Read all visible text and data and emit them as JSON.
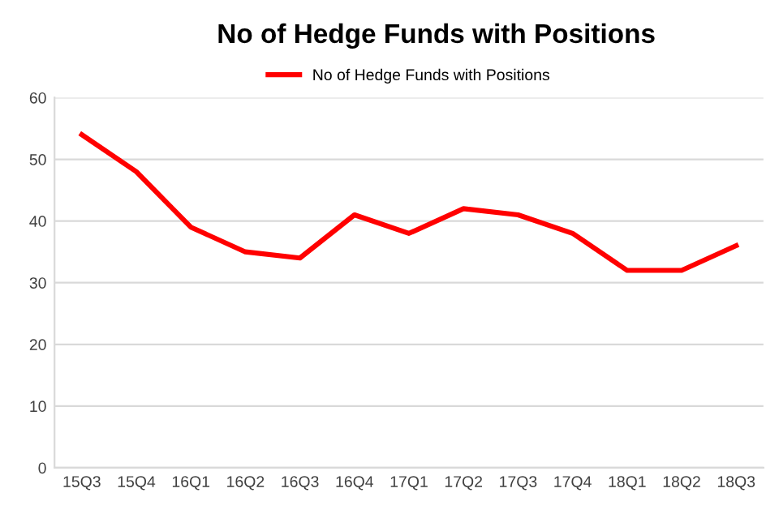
{
  "chart_data": {
    "type": "line",
    "title": "No of Hedge Funds with Positions",
    "categories": [
      "15Q3",
      "15Q4",
      "16Q1",
      "16Q2",
      "16Q3",
      "16Q4",
      "17Q1",
      "17Q2",
      "17Q3",
      "17Q4",
      "18Q1",
      "18Q2",
      "18Q3"
    ],
    "series": [
      {
        "name": "No of Hedge Funds with Positions",
        "color": "#ff0000",
        "values": [
          54,
          48,
          39,
          35,
          34,
          41,
          38,
          42,
          41,
          38,
          32,
          32,
          36
        ]
      }
    ],
    "ylim": [
      0,
      60
    ],
    "yticks": [
      0,
      10,
      20,
      30,
      40,
      50,
      60
    ],
    "grid": "y",
    "legend": "top",
    "marker": "none",
    "line_style": "solid"
  }
}
